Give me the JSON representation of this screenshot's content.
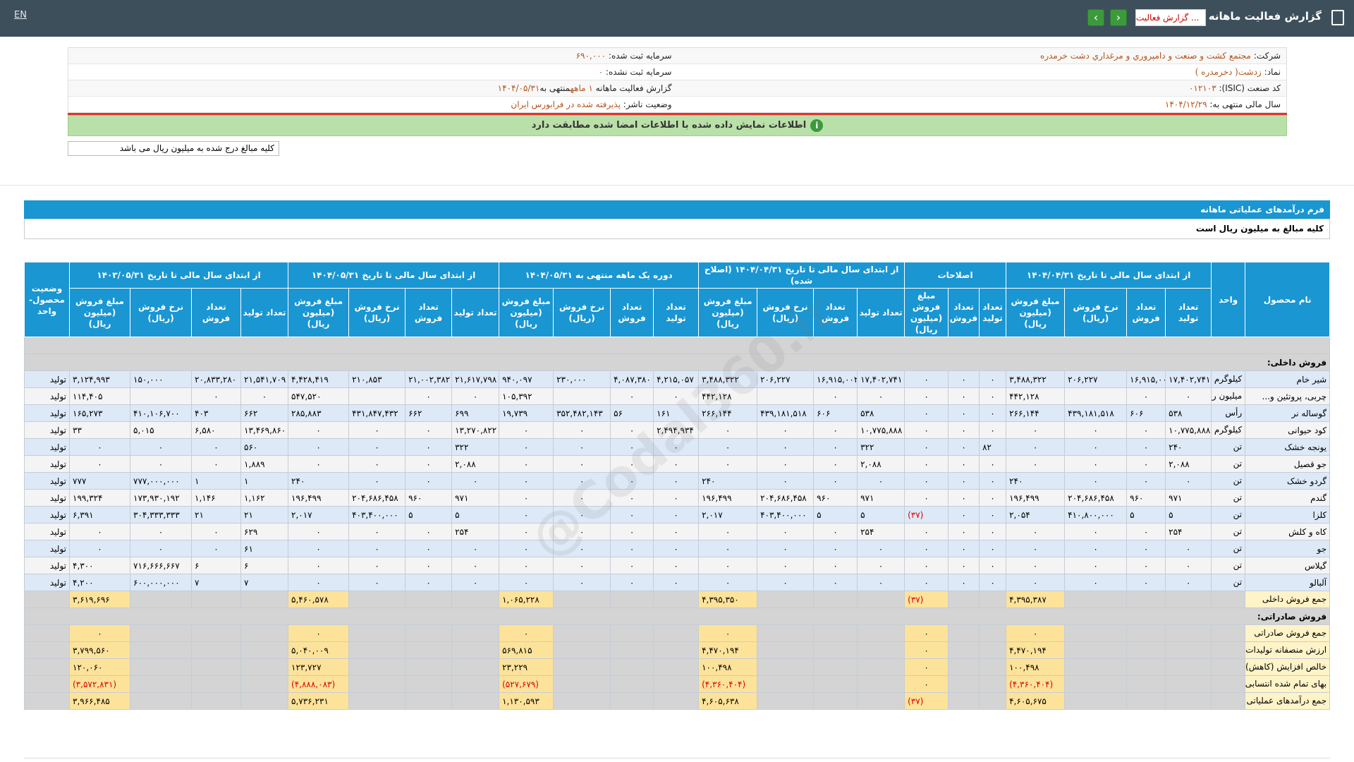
{
  "topbar": {
    "lang": "EN",
    "title": "گزارش فعالیت ماهانه",
    "dropdown": "گزارش فعالیت ..."
  },
  "info": {
    "company": {
      "label": "شرکت:",
      "value": "مجتمع کشت و صنعت و دامپروري و مرغداري دشت خرمدره"
    },
    "registered_capital": {
      "label": "سرمایه ثبت شده:",
      "value": "۶۹۰,۰۰۰"
    },
    "symbol": {
      "label": "نماد:",
      "value": "زدشت( دخرمدره )"
    },
    "unregistered_capital": {
      "label": "سرمایه ثبت نشده:",
      "value": "۰"
    },
    "isic": {
      "label": "کد صنعت (ISIC):",
      "value": "۰۱۲۱۰۳"
    },
    "report": {
      "label": "گزارش فعالیت ماهانه",
      "period": "۱ ماهه",
      "ending": "منتهی به",
      "date": "۱۴۰۴/۰۵/۳۱"
    },
    "fiscal_year": {
      "label": "سال مالی منتهی به:",
      "value": "۱۴۰۴/۱۲/۲۹"
    },
    "status": {
      "label": "وضعیت ناشر:",
      "value": "پذیرفته شده در فرابورس ایران"
    }
  },
  "verified": "اطلاعات نمایش داده شده با اطلاعات امضا شده مطابقت دارد",
  "note": "کلیه مبالغ درج شده به میلیون ریال می باشد",
  "form_title": "فرم درآمدهای عملیاتی ماهانه",
  "form_subtitle": "كليه مبالغ به ميليون ريال است",
  "watermark": "@Codal360.ir",
  "table": {
    "headers": {
      "product": "نام محصول",
      "unit": "واحد",
      "status": "وضعیت محصول-واحد",
      "groups": [
        {
          "title": "از ابتدای سال مالی تا تاریخ ۱۴۰۴/۰۴/۳۱",
          "columns": [
            "تعداد تولید",
            "تعداد فروش",
            "نرخ فروش (ریال)",
            "مبلغ فروش (میلیون ریال)"
          ]
        },
        {
          "title": "اصلاحات",
          "columns": [
            "تعداد تولید",
            "تعداد فروش",
            "مبلغ فروش (میلیون ریال)"
          ]
        },
        {
          "title": "از ابتدای سال مالی تا تاریخ ۱۴۰۴/۰۴/۳۱ (اصلاح شده)",
          "columns": [
            "تعداد تولید",
            "تعداد فروش",
            "نرخ فروش (ریال)",
            "مبلغ فروش (میلیون ریال)"
          ]
        },
        {
          "title": "دوره یک ماهه منتهی به ۱۴۰۴/۰۵/۳۱",
          "columns": [
            "تعداد تولید",
            "تعداد فروش",
            "نرخ فروش (ریال)",
            "مبلغ فروش (میلیون ریال)"
          ]
        },
        {
          "title": "از ابتدای سال مالی تا تاریخ ۱۴۰۴/۰۵/۳۱",
          "columns": [
            "تعداد تولید",
            "تعداد فروش",
            "نرخ فروش (ریال)",
            "مبلغ فروش (میلیون ریال)"
          ]
        },
        {
          "title": "از ابتدای سال مالی تا تاریخ ۱۴۰۳/۰۵/۳۱",
          "columns": [
            "تعداد تولید",
            "تعداد فروش",
            "نرخ فروش (ریال)",
            "مبلغ فروش (میلیون ریال)"
          ]
        }
      ]
    },
    "rows": [
      {
        "section": "فروش داخلی:"
      },
      {
        "cells": [
          "شیر خام",
          "کیلوگرم",
          "۱۷,۴۰۲,۷۴۱",
          "۱۶,۹۱۵,۰۰۲",
          "۲۰۶,۲۲۷",
          "۳,۴۸۸,۳۲۲",
          "۰",
          "۰",
          "۰",
          "۱۷,۴۰۲,۷۴۱",
          "۱۶,۹۱۵,۰۰۲",
          "۲۰۶,۲۲۷",
          "۳,۴۸۸,۳۲۲",
          "۴,۲۱۵,۰۵۷",
          "۴,۰۸۷,۳۸۰",
          "۲۳۰,۰۰۰",
          "۹۴۰,۰۹۷",
          "۲۱,۶۱۷,۷۹۸",
          "۲۱,۰۰۲,۳۸۲",
          "۲۱۰,۸۵۳",
          "۴,۴۲۸,۴۱۹",
          "۲۱,۵۴۱,۷۰۹",
          "۲۰,۸۳۳,۲۸۰",
          "۱۵۰,۰۰۰",
          "۳,۱۲۴,۹۹۳",
          "تولید"
        ]
      },
      {
        "cells": [
          "چربی، پروتئین و...",
          "میلیون ریال",
          "۰",
          "۰",
          null,
          "۴۴۲,۱۲۸",
          "۰",
          "۰",
          "۰",
          "۰",
          "۰",
          null,
          "۴۴۲,۱۲۸",
          "۰",
          "۰",
          null,
          "۱۰۵,۳۹۲",
          "۰",
          "۰",
          null,
          "۵۴۷,۵۲۰",
          "۰",
          "۰",
          null,
          "۱۱۴,۴۰۵",
          "تولید"
        ]
      },
      {
        "cells": [
          "گوساله نر",
          "رأس",
          "۵۳۸",
          "۶۰۶",
          "۴۳۹,۱۸۱,۵۱۸",
          "۲۶۶,۱۴۴",
          "۰",
          "۰",
          "۰",
          "۵۳۸",
          "۶۰۶",
          "۴۳۹,۱۸۱,۵۱۸",
          "۲۶۶,۱۴۴",
          "۱۶۱",
          "۵۶",
          "۳۵۲,۴۸۲,۱۴۳",
          "۱۹,۷۳۹",
          "۶۹۹",
          "۶۶۲",
          "۴۳۱,۸۴۷,۴۳۲",
          "۲۸۵,۸۸۳",
          "۶۶۲",
          "۴۰۳",
          "۴۱۰,۱۰۶,۷۰۰",
          "۱۶۵,۲۷۳",
          "تولید"
        ]
      },
      {
        "cells": [
          "کود حیوانی",
          "کیلوگرم",
          "۱۰,۷۷۵,۸۸۸",
          "۰",
          "۰",
          "۰",
          "۰",
          "۰",
          "۰",
          "۱۰,۷۷۵,۸۸۸",
          "۰",
          "۰",
          "۰",
          "۲,۴۹۴,۹۳۴",
          "۰",
          "۰",
          "۰",
          "۱۳,۲۷۰,۸۲۲",
          "۰",
          "۰",
          "۰",
          "۱۳,۴۶۹,۸۶۰",
          "۶,۵۸۰",
          "۵,۰۱۵",
          "۳۳",
          "تولید"
        ]
      },
      {
        "cells": [
          "یونجه خشک",
          "تن",
          "۲۴۰",
          "۰",
          "۰",
          "۰",
          "۸۲",
          "۰",
          "۰",
          "۳۲۲",
          "۰",
          "۰",
          "۰",
          "۰",
          "۰",
          "۰",
          "۰",
          "۳۲۲",
          "۰",
          "۰",
          "۰",
          "۵۶۰",
          "۰",
          "۰",
          "۰",
          "تولید"
        ]
      },
      {
        "cells": [
          "جو قصیل",
          "تن",
          "۲,۰۸۸",
          "۰",
          "۰",
          "۰",
          "۰",
          "۰",
          "۰",
          "۲,۰۸۸",
          "۰",
          "۰",
          "۰",
          "۰",
          "۰",
          "۰",
          "۰",
          "۲,۰۸۸",
          "۰",
          "۰",
          "۰",
          "۱,۸۸۹",
          "۰",
          "۰",
          "۰",
          "تولید"
        ]
      },
      {
        "cells": [
          "گردو خشک",
          "تن",
          "۰",
          "۰",
          "۰",
          "۲۴۰",
          "۰",
          "۰",
          "۰",
          "۰",
          "۰",
          "۰",
          "۲۴۰",
          "۰",
          "۰",
          "۰",
          "۰",
          "۰",
          "۰",
          "۰",
          "۲۴۰",
          "۱",
          "۱",
          "۷۷۷,۰۰۰,۰۰۰",
          "۷۷۷",
          "تولید"
        ]
      },
      {
        "cells": [
          "گندم",
          "تن",
          "۹۷۱",
          "۹۶۰",
          "۲۰۴,۶۸۶,۴۵۸",
          "۱۹۶,۴۹۹",
          "۰",
          "۰",
          "۰",
          "۹۷۱",
          "۹۶۰",
          "۲۰۴,۶۸۶,۴۵۸",
          "۱۹۶,۴۹۹",
          "۰",
          "۰",
          "۰",
          "۰",
          "۹۷۱",
          "۹۶۰",
          "۲۰۴,۶۸۶,۴۵۸",
          "۱۹۶,۴۹۹",
          "۱,۱۶۲",
          "۱,۱۴۶",
          "۱۷۳,۹۳۰,۱۹۲",
          "۱۹۹,۳۲۴",
          "تولید"
        ]
      },
      {
        "cells": [
          "کلزا",
          "تن",
          "۵",
          "۵",
          "۴۱۰,۸۰۰,۰۰۰",
          "۲,۰۵۴",
          "۰",
          "۰",
          "(۳۷)",
          "۵",
          "۵",
          "۴۰۳,۴۰۰,۰۰۰",
          "۲,۰۱۷",
          "۰",
          "۰",
          "۰",
          "۰",
          "۵",
          "۵",
          "۴۰۳,۴۰۰,۰۰۰",
          "۲,۰۱۷",
          "۲۱",
          "۲۱",
          "۳۰۴,۳۳۳,۳۳۳",
          "۶,۳۹۱",
          "تولید"
        ]
      },
      {
        "cells": [
          "کاه و کلش",
          "تن",
          "۲۵۴",
          "۰",
          "۰",
          "۰",
          "۰",
          "۰",
          "۰",
          "۲۵۴",
          "۰",
          "۰",
          "۰",
          "۰",
          "۰",
          "۰",
          "۰",
          "۲۵۴",
          "۰",
          "۰",
          "۰",
          "۶۲۹",
          "۰",
          "۰",
          "۰",
          "تولید"
        ]
      },
      {
        "cells": [
          "جو",
          "تن",
          "۰",
          "۰",
          "۰",
          "۰",
          "۰",
          "۰",
          "۰",
          "۰",
          "۰",
          "۰",
          "۰",
          "۰",
          "۰",
          "۰",
          "۰",
          "۰",
          "۰",
          "۰",
          "۰",
          "۶۱",
          "۰",
          "۰",
          "۰",
          "تولید"
        ]
      },
      {
        "cells": [
          "گیلاس",
          "تن",
          "۰",
          "۰",
          "۰",
          "۰",
          "۰",
          "۰",
          "۰",
          "۰",
          "۰",
          "۰",
          "۰",
          "۰",
          "۰",
          "۰",
          "۰",
          "۰",
          "۰",
          "۰",
          "۰",
          "۶",
          "۶",
          "۷۱۶,۶۶۶,۶۶۷",
          "۴,۳۰۰",
          "تولید"
        ]
      },
      {
        "cells": [
          "آلبالو",
          "تن",
          "۰",
          "۰",
          "۰",
          "۰",
          "۰",
          "۰",
          "۰",
          "۰",
          "۰",
          "۰",
          "۰",
          "۰",
          "۰",
          "۰",
          "۰",
          "۰",
          "۰",
          "۰",
          "۰",
          "۷",
          "۷",
          "۶۰۰,۰۰۰,۰۰۰",
          "۴,۲۰۰",
          "تولید"
        ]
      },
      {
        "label": "جمع فروش داخلی",
        "amounts": [
          "۴,۳۹۵,۳۸۷",
          "(۳۷)",
          "۴,۳۹۵,۳۵۰",
          "۱,۰۶۵,۲۲۸",
          "۵,۴۶۰,۵۷۸",
          "۳,۶۱۹,۶۹۶"
        ]
      },
      {
        "section": "فروش صادراتی:"
      },
      {
        "label": "جمع فروش صادراتی",
        "amounts": [
          "۰",
          "۰",
          "۰",
          "۰",
          "۰",
          "۰"
        ]
      },
      {
        "label": "ارزش منصفانه تولیدات کشاورزی",
        "amounts": [
          "۴,۴۷۰,۱۹۴",
          "۰",
          "۴,۴۷۰,۱۹۴",
          "۵۶۹,۸۱۵",
          "۵,۰۴۰,۰۰۹",
          "۳,۷۹۹,۵۶۰"
        ]
      },
      {
        "label": "خالص افزایش (کاهش) ارزش منصفانه دارائیهای زیستی غیر مولد",
        "amounts": [
          "۱۰۰,۴۹۸",
          "۰",
          "۱۰۰,۴۹۸",
          "۲۳,۲۲۹",
          "۱۲۳,۷۲۷",
          "۱۲۰,۰۶۰"
        ]
      },
      {
        "label": "بهای تمام شده انتسابی",
        "amounts": [
          "(۴,۳۶۰,۴۰۴)",
          "۰",
          "(۴,۳۶۰,۴۰۴)",
          "(۵۲۷,۶۷۹)",
          "(۴,۸۸۸,۰۸۳)",
          "(۳,۵۷۲,۸۳۱)"
        ]
      },
      {
        "label": "جمع درآمدهای عملیاتی",
        "amounts": [
          "۴,۶۰۵,۶۷۵",
          "(۳۷)",
          "۴,۶۰۵,۶۳۸",
          "۱,۱۳۰,۵۹۳",
          "۵,۷۳۶,۲۳۱",
          "۳,۹۶۶,۴۸۵"
        ]
      }
    ]
  }
}
